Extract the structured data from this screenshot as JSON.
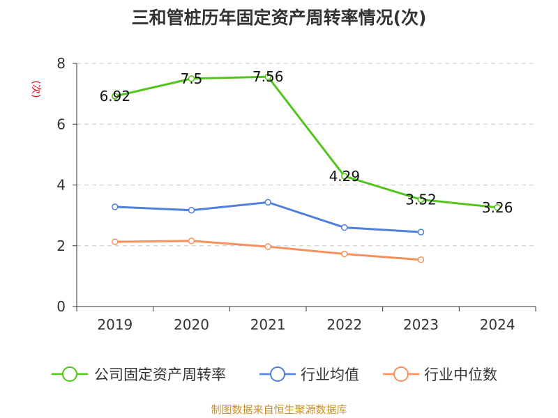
{
  "chart_data": {
    "type": "line",
    "title": "三和管桩历年固定资产周转率情况(次)",
    "ylabel": "(次)",
    "xlabel": "",
    "ylim": [
      0,
      8
    ],
    "yticks": [
      0,
      2,
      4,
      6,
      8
    ],
    "categories": [
      "2019",
      "2020",
      "2021",
      "2022",
      "2023",
      "2024"
    ],
    "grid": true,
    "legend_position": "bottom",
    "series": [
      {
        "name": "公司固定资产周转率",
        "color": "#52c41a",
        "labeled": true,
        "values": [
          6.92,
          7.5,
          7.56,
          4.29,
          3.52,
          3.26
        ]
      },
      {
        "name": "行业均值",
        "color": "#4f7fdb",
        "labeled": false,
        "values": [
          3.28,
          3.17,
          3.43,
          2.6,
          2.45,
          null
        ]
      },
      {
        "name": "行业中位数",
        "color": "#f7905c",
        "labeled": false,
        "values": [
          2.13,
          2.16,
          1.97,
          1.73,
          1.54,
          null
        ]
      }
    ]
  },
  "footer": {
    "source": "制图数据来自恒生聚源数据库"
  }
}
